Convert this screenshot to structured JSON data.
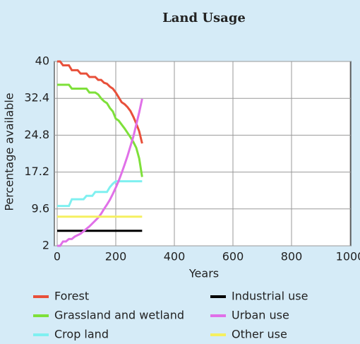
{
  "chart_data": {
    "type": "line",
    "title": "Land Usage",
    "x_label": "Years",
    "y_label": "Percentage available",
    "x": [
      0,
      10,
      20,
      30,
      40,
      50,
      60,
      70,
      80,
      90,
      100,
      110,
      120,
      130,
      140,
      150,
      160,
      170,
      180,
      190,
      200,
      210,
      220,
      230,
      240,
      250,
      260,
      270,
      280,
      290
    ],
    "series": [
      {
        "name": "Forest",
        "color": "#e8503a",
        "values": [
          40,
          40,
          39.2,
          39.2,
          39.2,
          38.2,
          38.2,
          38.2,
          37.5,
          37.5,
          37.5,
          36.8,
          36.8,
          36.8,
          36.2,
          36.2,
          35.6,
          35.4,
          34.8,
          34.4,
          33.6,
          32.6,
          31.6,
          31.2,
          30.6,
          29.8,
          28.6,
          27.2,
          25.6,
          23.1
        ]
      },
      {
        "name": "Grassland and wetland",
        "color": "#7ee03a",
        "values": [
          35.2,
          35.2,
          35.2,
          35.2,
          35.2,
          34.4,
          34.4,
          34.4,
          34.4,
          34.4,
          34.4,
          33.6,
          33.6,
          33.6,
          33.2,
          32.4,
          31.8,
          31.4,
          30.4,
          29.7,
          28.2,
          27.8,
          27,
          26.2,
          25.3,
          24.4,
          23.4,
          22.2,
          20,
          16.2
        ]
      },
      {
        "name": "Crop land",
        "color": "#7ff0f0",
        "values": [
          10.2,
          10.2,
          10.2,
          10.2,
          10.2,
          11.6,
          11.6,
          11.6,
          11.6,
          11.6,
          12.3,
          12.3,
          12.3,
          13.1,
          13.1,
          13.1,
          13.1,
          13.1,
          14.1,
          14.8,
          15.3,
          15.3,
          15.3,
          15.3,
          15.3,
          15.3,
          15.3,
          15.3,
          15.3,
          15.3
        ]
      },
      {
        "name": "Industrial use",
        "color": "#000000",
        "values": [
          5.1,
          5.1,
          5.1,
          5.1,
          5.1,
          5.1,
          5.1,
          5.1,
          5.1,
          5.1,
          5.1,
          5.1,
          5.1,
          5.1,
          5.1,
          5.1,
          5.1,
          5.1,
          5.1,
          5.1,
          5.1,
          5.1,
          5.1,
          5.1,
          5.1,
          5.1,
          5.1,
          5.1,
          5.1,
          5.1
        ]
      },
      {
        "name": "Urban use",
        "color": "#e070e8",
        "values": [
          2,
          2,
          2.9,
          2.9,
          3.4,
          3.4,
          3.9,
          4.2,
          4.5,
          5,
          5.5,
          6,
          6.6,
          7.2,
          7.8,
          8.6,
          9.6,
          10.5,
          11.5,
          12.7,
          14,
          15.4,
          17,
          18.7,
          20.5,
          22.5,
          24.5,
          27,
          29.5,
          32.3
        ]
      },
      {
        "name": "Other use",
        "color": "#f5f060",
        "values": [
          8,
          8,
          8,
          8,
          8,
          8,
          8,
          8,
          8,
          8,
          8,
          8,
          8,
          8,
          8,
          8,
          8,
          8,
          8,
          8,
          8,
          8,
          8,
          8,
          8,
          8,
          8,
          8,
          8,
          8
        ]
      }
    ],
    "xlim": [
      0,
      1000
    ],
    "xticks": [
      0,
      200,
      400,
      600,
      800,
      1000
    ],
    "ylim": [
      2,
      40
    ],
    "yticks": [
      2,
      9.6,
      17.2,
      24.8,
      32.4,
      40
    ],
    "grid": true
  }
}
